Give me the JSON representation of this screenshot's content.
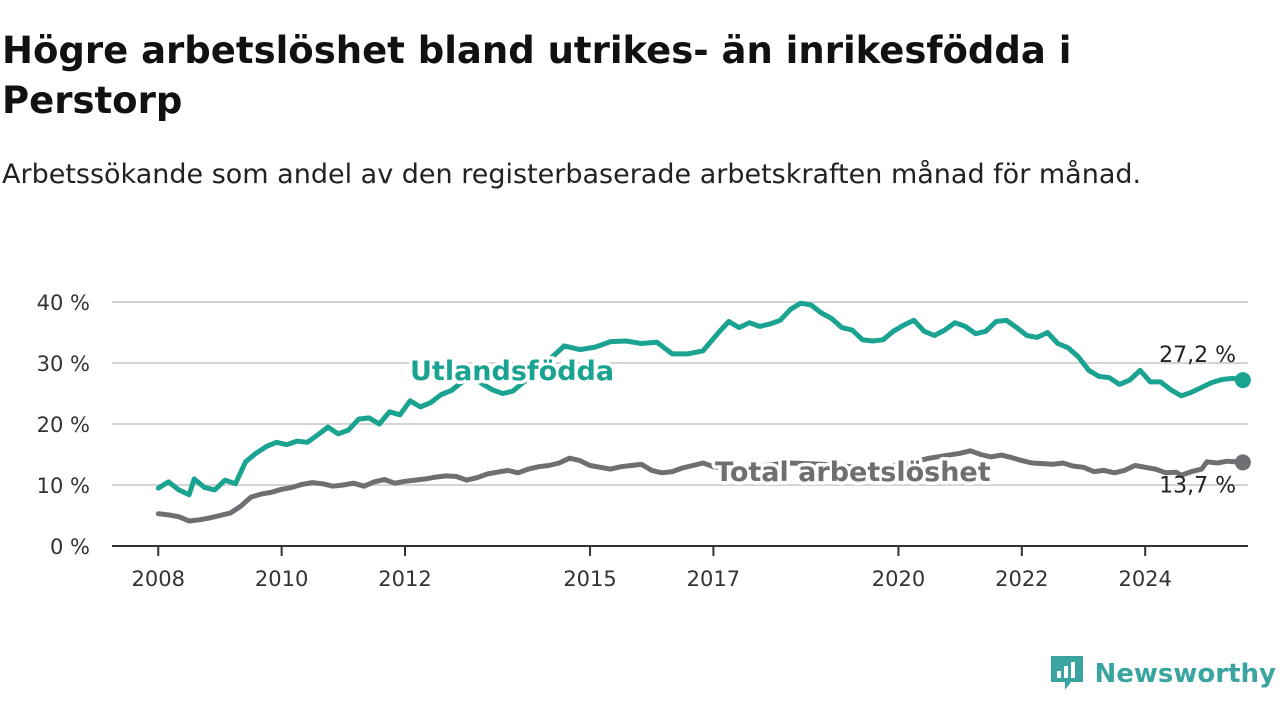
{
  "chart_data": {
    "type": "line",
    "title": "Högre arbetslöshet bland utrikes- än inrikesfödda i Perstorp",
    "subtitle": "Arbetssökande som andel av den registerbaserade arbetskraften månad för månad.",
    "xlabel": "",
    "ylabel": "",
    "x_tick_labels": [
      "2008",
      "2010",
      "2012",
      "2015",
      "2017",
      "2020",
      "2022",
      "2024"
    ],
    "y_tick_labels": [
      "0 %",
      "10 %",
      "20 %",
      "30 %",
      "40 %"
    ],
    "ylim": [
      0,
      40
    ],
    "xlim": [
      "2007-04",
      "2025-09"
    ],
    "grid": true,
    "legend": "inline labels",
    "series": [
      {
        "name": "Utlandsfödda",
        "color": "#1ba391",
        "end_label": "27,2 %",
        "points": [
          [
            "2008-01",
            9.5
          ],
          [
            "2008-03",
            10.5
          ],
          [
            "2008-05",
            9.2
          ],
          [
            "2008-07",
            8.4
          ],
          [
            "2008-08",
            11.0
          ],
          [
            "2008-10",
            9.6
          ],
          [
            "2008-12",
            9.2
          ],
          [
            "2009-02",
            10.8
          ],
          [
            "2009-04",
            10.2
          ],
          [
            "2009-06",
            13.8
          ],
          [
            "2009-08",
            15.2
          ],
          [
            "2009-10",
            16.3
          ],
          [
            "2009-12",
            17.0
          ],
          [
            "2010-02",
            16.6
          ],
          [
            "2010-04",
            17.2
          ],
          [
            "2010-06",
            17.0
          ],
          [
            "2010-08",
            18.2
          ],
          [
            "2010-10",
            19.5
          ],
          [
            "2010-12",
            18.4
          ],
          [
            "2011-02",
            19.0
          ],
          [
            "2011-04",
            20.8
          ],
          [
            "2011-06",
            21.0
          ],
          [
            "2011-08",
            20.0
          ],
          [
            "2011-10",
            22.0
          ],
          [
            "2011-12",
            21.5
          ],
          [
            "2012-02",
            23.8
          ],
          [
            "2012-04",
            22.8
          ],
          [
            "2012-06",
            23.5
          ],
          [
            "2012-08",
            24.8
          ],
          [
            "2012-10",
            25.5
          ],
          [
            "2012-12",
            26.8
          ],
          [
            "2013-02",
            27.8
          ],
          [
            "2013-04",
            26.6
          ],
          [
            "2013-06",
            25.6
          ],
          [
            "2013-08",
            25.0
          ],
          [
            "2013-10",
            25.4
          ],
          [
            "2013-12",
            26.8
          ],
          [
            "2014-02",
            28.0
          ],
          [
            "2014-05",
            30.5
          ],
          [
            "2014-08",
            32.8
          ],
          [
            "2014-11",
            32.2
          ],
          [
            "2015-02",
            32.6
          ],
          [
            "2015-05",
            33.5
          ],
          [
            "2015-08",
            33.6
          ],
          [
            "2015-11",
            33.2
          ],
          [
            "2016-02",
            33.4
          ],
          [
            "2016-05",
            31.5
          ],
          [
            "2016-08",
            31.5
          ],
          [
            "2016-11",
            32.0
          ],
          [
            "2017-02",
            35.0
          ],
          [
            "2017-04",
            36.8
          ],
          [
            "2017-06",
            35.8
          ],
          [
            "2017-08",
            36.6
          ],
          [
            "2017-10",
            36.0
          ],
          [
            "2017-12",
            36.4
          ],
          [
            "2018-02",
            37.0
          ],
          [
            "2018-04",
            38.8
          ],
          [
            "2018-06",
            39.8
          ],
          [
            "2018-08",
            39.5
          ],
          [
            "2018-10",
            38.2
          ],
          [
            "2018-12",
            37.3
          ],
          [
            "2019-02",
            35.8
          ],
          [
            "2019-04",
            35.4
          ],
          [
            "2019-06",
            33.8
          ],
          [
            "2019-08",
            33.6
          ],
          [
            "2019-10",
            33.8
          ],
          [
            "2019-12",
            35.2
          ],
          [
            "2020-02",
            36.2
          ],
          [
            "2020-04",
            37.0
          ],
          [
            "2020-06",
            35.2
          ],
          [
            "2020-08",
            34.5
          ],
          [
            "2020-10",
            35.4
          ],
          [
            "2020-12",
            36.6
          ],
          [
            "2021-02",
            36.0
          ],
          [
            "2021-04",
            34.8
          ],
          [
            "2021-06",
            35.2
          ],
          [
            "2021-08",
            36.8
          ],
          [
            "2021-10",
            37.0
          ],
          [
            "2021-12",
            35.8
          ],
          [
            "2022-02",
            34.5
          ],
          [
            "2022-04",
            34.2
          ],
          [
            "2022-06",
            35.0
          ],
          [
            "2022-08",
            33.2
          ],
          [
            "2022-10",
            32.5
          ],
          [
            "2022-12",
            31.0
          ],
          [
            "2023-02",
            28.8
          ],
          [
            "2023-04",
            27.8
          ],
          [
            "2023-06",
            27.6
          ],
          [
            "2023-08",
            26.5
          ],
          [
            "2023-10",
            27.2
          ],
          [
            "2023-12",
            28.8
          ],
          [
            "2024-02",
            26.9
          ],
          [
            "2024-04",
            26.9
          ],
          [
            "2024-06",
            25.6
          ],
          [
            "2024-08",
            24.6
          ],
          [
            "2024-10",
            25.2
          ],
          [
            "2024-12",
            26.0
          ],
          [
            "2025-02",
            26.8
          ],
          [
            "2025-04",
            27.3
          ],
          [
            "2025-06",
            27.5
          ],
          [
            "2025-08",
            27.2
          ]
        ]
      },
      {
        "name": "Total arbetslöshet",
        "color": "#6e6e73",
        "end_label": "13,7 %",
        "points": [
          [
            "2008-01",
            5.3
          ],
          [
            "2008-03",
            5.1
          ],
          [
            "2008-05",
            4.8
          ],
          [
            "2008-07",
            4.1
          ],
          [
            "2008-09",
            4.3
          ],
          [
            "2008-11",
            4.6
          ],
          [
            "2009-01",
            5.0
          ],
          [
            "2009-03",
            5.4
          ],
          [
            "2009-05",
            6.5
          ],
          [
            "2009-07",
            8.0
          ],
          [
            "2009-09",
            8.5
          ],
          [
            "2009-11",
            8.8
          ],
          [
            "2010-01",
            9.3
          ],
          [
            "2010-03",
            9.6
          ],
          [
            "2010-05",
            10.1
          ],
          [
            "2010-07",
            10.4
          ],
          [
            "2010-09",
            10.2
          ],
          [
            "2010-11",
            9.8
          ],
          [
            "2011-01",
            10.0
          ],
          [
            "2011-03",
            10.3
          ],
          [
            "2011-05",
            9.8
          ],
          [
            "2011-07",
            10.5
          ],
          [
            "2011-09",
            10.9
          ],
          [
            "2011-11",
            10.3
          ],
          [
            "2012-01",
            10.6
          ],
          [
            "2012-03",
            10.8
          ],
          [
            "2012-05",
            11.0
          ],
          [
            "2012-07",
            11.3
          ],
          [
            "2012-09",
            11.5
          ],
          [
            "2012-11",
            11.4
          ],
          [
            "2013-01",
            10.8
          ],
          [
            "2013-03",
            11.2
          ],
          [
            "2013-05",
            11.8
          ],
          [
            "2013-07",
            12.1
          ],
          [
            "2013-09",
            12.4
          ],
          [
            "2013-11",
            12.0
          ],
          [
            "2014-01",
            12.6
          ],
          [
            "2014-03",
            13.0
          ],
          [
            "2014-05",
            13.2
          ],
          [
            "2014-07",
            13.6
          ],
          [
            "2014-09",
            14.4
          ],
          [
            "2014-11",
            14.0
          ],
          [
            "2015-01",
            13.2
          ],
          [
            "2015-03",
            12.9
          ],
          [
            "2015-05",
            12.6
          ],
          [
            "2015-07",
            13.0
          ],
          [
            "2015-09",
            13.2
          ],
          [
            "2015-11",
            13.4
          ],
          [
            "2016-01",
            12.4
          ],
          [
            "2016-03",
            12.0
          ],
          [
            "2016-05",
            12.2
          ],
          [
            "2016-07",
            12.8
          ],
          [
            "2016-09",
            13.2
          ],
          [
            "2016-11",
            13.6
          ],
          [
            "2017-01",
            13.0
          ],
          [
            "2017-03",
            12.8
          ],
          [
            "2017-05",
            12.6
          ],
          [
            "2017-07",
            12.4
          ],
          [
            "2017-09",
            12.8
          ],
          [
            "2017-11",
            13.2
          ],
          [
            "2018-01",
            13.4
          ],
          [
            "2018-04",
            13.6
          ],
          [
            "2018-07",
            13.5
          ],
          [
            "2018-10",
            13.4
          ],
          [
            "2019-01",
            13.2
          ],
          [
            "2019-04",
            13.0
          ],
          [
            "2019-07",
            12.8
          ],
          [
            "2019-10",
            13.0
          ],
          [
            "2020-01",
            13.3
          ],
          [
            "2020-04",
            13.8
          ],
          [
            "2020-07",
            14.4
          ],
          [
            "2020-10",
            14.8
          ],
          [
            "2021-01",
            15.2
          ],
          [
            "2021-03",
            15.6
          ],
          [
            "2021-05",
            15.0
          ],
          [
            "2021-07",
            14.6
          ],
          [
            "2021-09",
            14.9
          ],
          [
            "2021-11",
            14.5
          ],
          [
            "2022-01",
            14.0
          ],
          [
            "2022-03",
            13.6
          ],
          [
            "2022-05",
            13.5
          ],
          [
            "2022-07",
            13.4
          ],
          [
            "2022-09",
            13.6
          ],
          [
            "2022-11",
            13.1
          ],
          [
            "2023-01",
            12.9
          ],
          [
            "2023-03",
            12.2
          ],
          [
            "2023-05",
            12.4
          ],
          [
            "2023-07",
            12.0
          ],
          [
            "2023-09",
            12.4
          ],
          [
            "2023-11",
            13.2
          ],
          [
            "2024-01",
            12.9
          ],
          [
            "2024-03",
            12.6
          ],
          [
            "2024-05",
            12.0
          ],
          [
            "2024-07",
            12.1
          ],
          [
            "2024-08",
            11.6
          ],
          [
            "2024-10",
            12.2
          ],
          [
            "2024-12",
            12.6
          ],
          [
            "2025-01",
            13.8
          ],
          [
            "2025-03",
            13.6
          ],
          [
            "2025-05",
            13.9
          ],
          [
            "2025-08",
            13.7
          ]
        ]
      }
    ]
  },
  "branding": {
    "name": "Newsworthy",
    "logo_icon": "newsworthy-logo-icon",
    "color": "#3aa5a0"
  }
}
